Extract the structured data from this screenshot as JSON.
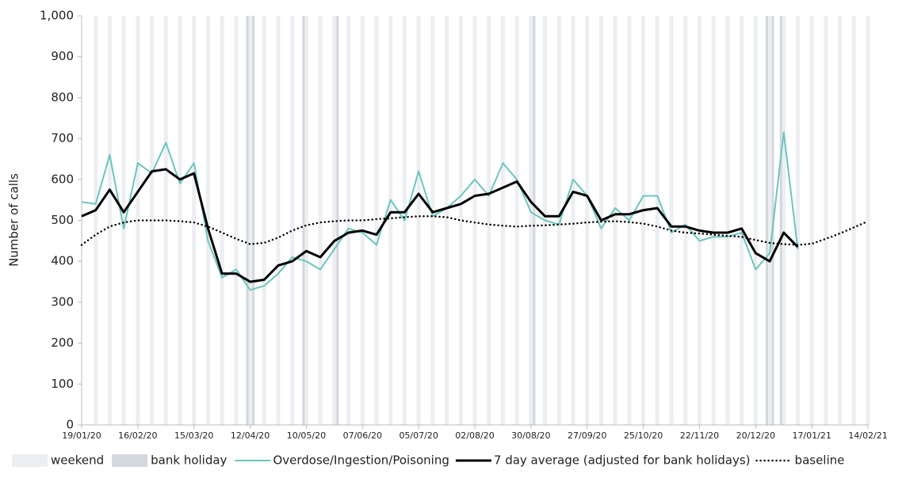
{
  "chart_data": {
    "type": "line",
    "y_label": "Number of calls",
    "x": [
      "19/01/20",
      "26/01/20",
      "02/02/20",
      "09/02/20",
      "16/02/20",
      "23/02/20",
      "01/03/20",
      "08/03/20",
      "15/03/20",
      "22/03/20",
      "29/03/20",
      "05/04/20",
      "12/04/20",
      "19/04/20",
      "26/04/20",
      "03/05/20",
      "10/05/20",
      "17/05/20",
      "24/05/20",
      "31/05/20",
      "07/06/20",
      "14/06/20",
      "21/06/20",
      "28/06/20",
      "05/07/20",
      "12/07/20",
      "19/07/20",
      "26/07/20",
      "02/08/20",
      "09/08/20",
      "16/08/20",
      "23/08/20",
      "30/08/20",
      "06/09/20",
      "13/09/20",
      "20/09/20",
      "27/09/20",
      "04/10/20",
      "11/10/20",
      "18/10/20",
      "25/10/20",
      "01/11/20",
      "08/11/20",
      "15/11/20",
      "22/11/20",
      "29/11/20",
      "06/12/20",
      "13/12/20",
      "20/12/20",
      "27/12/20",
      "03/01/21",
      "10/01/21",
      "17/01/21",
      "24/01/21",
      "31/01/21",
      "07/02/21",
      "14/02/21"
    ],
    "series": [
      {
        "name": "Overdose/Ingestion/Poisoning",
        "color": "#6cc5bd",
        "line_width": 2,
        "style": "solid",
        "values": [
          545,
          540,
          660,
          480,
          640,
          615,
          690,
          590,
          640,
          450,
          360,
          380,
          330,
          340,
          370,
          410,
          400,
          380,
          430,
          480,
          470,
          440,
          550,
          500,
          620,
          510,
          530,
          560,
          600,
          560,
          640,
          600,
          520,
          500,
          490,
          600,
          560,
          480,
          530,
          500,
          560,
          560,
          470,
          490,
          450,
          460,
          460,
          470,
          380,
          420,
          715,
          430,
          null,
          null,
          null,
          null,
          null
        ]
      },
      {
        "name": "7 day average (adjusted for bank holidays)",
        "color": "#000000",
        "line_width": 3,
        "style": "solid",
        "values": [
          510,
          525,
          575,
          520,
          570,
          620,
          625,
          600,
          615,
          480,
          370,
          370,
          350,
          355,
          390,
          400,
          425,
          410,
          450,
          470,
          475,
          465,
          520,
          520,
          565,
          520,
          530,
          540,
          560,
          565,
          580,
          595,
          545,
          510,
          510,
          570,
          560,
          500,
          515,
          515,
          525,
          530,
          485,
          485,
          475,
          470,
          470,
          480,
          420,
          400,
          470,
          435,
          null,
          null,
          null,
          null,
          null
        ]
      },
      {
        "name": "baseline",
        "color": "#000000",
        "line_width": 2.5,
        "style": "dotted",
        "values": [
          440,
          465,
          485,
          495,
          500,
          500,
          500,
          498,
          495,
          485,
          470,
          455,
          442,
          445,
          458,
          475,
          488,
          495,
          498,
          500,
          500,
          503,
          505,
          508,
          510,
          510,
          508,
          500,
          495,
          490,
          487,
          485,
          487,
          488,
          490,
          492,
          495,
          497,
          498,
          496,
          492,
          485,
          475,
          470,
          468,
          465,
          462,
          460,
          452,
          445,
          442,
          440,
          443,
          455,
          468,
          483,
          498
        ]
      }
    ],
    "weekend": {
      "name": "weekend",
      "color": "#eceef1"
    },
    "bank_holiday": {
      "name": "bank holiday",
      "color": "#d3d8dd",
      "dates": [
        "10/04/20",
        "13/04/20",
        "08/05/20",
        "25/05/20",
        "31/08/20",
        "25/12/20",
        "28/12/20",
        "01/01/21"
      ]
    },
    "xlim": [
      "19/01/20",
      "14/02/21"
    ],
    "xticks": [
      "19/01/20",
      "16/02/20",
      "15/03/20",
      "12/04/20",
      "10/05/20",
      "07/06/20",
      "05/07/20",
      "02/08/20",
      "30/08/20",
      "27/09/20",
      "25/10/20",
      "22/11/20",
      "20/12/20",
      "17/01/21",
      "14/02/21"
    ],
    "ylim": [
      0,
      1000
    ],
    "yticks": [
      0,
      100,
      200,
      300,
      400,
      500,
      600,
      700,
      800,
      900,
      {
        "value": 1000,
        "label": "1,000"
      }
    ],
    "grid": false
  }
}
